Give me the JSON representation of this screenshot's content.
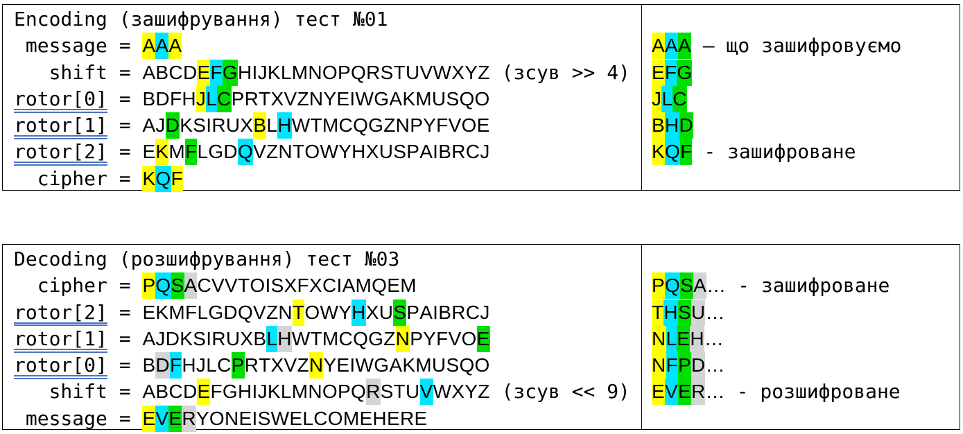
{
  "encoding": {
    "title": "Encoding (зашифрування) тест №01",
    "rows": [
      {
        "label": " message = ",
        "rotor": false,
        "seq": "AAA",
        "hl": "ycy",
        "tail": ""
      },
      {
        "label": "   shift = ",
        "rotor": false,
        "seq": "ABCDEFGHIJKLMNOPQRSTUVWXYZ",
        "hl": "....ycg...................",
        "tail": " (зсув >> 4)"
      },
      {
        "label": "rotor[0] = ",
        "rotor": true,
        "seq": "BDFHJLCPRTXVZNYEIWGAKMUSQO",
        "hl": "....ycg...................",
        "tail": ""
      },
      {
        "label": "rotor[1] = ",
        "rotor": true,
        "seq": "AJDKSIRUXBLHWTMCQGZNPYFVOE",
        "hl": "..g......y.c..............",
        "tail": ""
      },
      {
        "label": "rotor[2] = ",
        "rotor": true,
        "seq": "EKMFLGDQVZNTOWYHXUSPAIBRCJ",
        "hl": ".y.g...c..................",
        "tail": ""
      },
      {
        "label": "  cipher = ",
        "rotor": false,
        "seq": "KQF",
        "hl": "ycy",
        "tail": ""
      }
    ],
    "side": [
      {
        "seq": "",
        "hl": "",
        "tail": ""
      },
      {
        "seq": "AAA",
        "hl": "ycg",
        "tail": " – що зашифровуємо"
      },
      {
        "seq": "EFG",
        "hl": "ycg",
        "tail": ""
      },
      {
        "seq": "JLC",
        "hl": "ycg",
        "tail": ""
      },
      {
        "seq": "BHD",
        "hl": "ycg",
        "tail": ""
      },
      {
        "seq": "KQF",
        "hl": "ycg",
        "tail": " - зашифроване"
      }
    ]
  },
  "decoding": {
    "title": "Decoding (розшифрування) тест №03",
    "rows": [
      {
        "label": "  cipher = ",
        "rotor": false,
        "seq": "PQSACVVTOISXFXCIAMQEM",
        "hl": "ycgr.................",
        "tail": ""
      },
      {
        "label": "rotor[2] = ",
        "rotor": true,
        "seq": "EKMFLGDQVZNTOWYHXUSPAIBRCJ",
        "hl": "...........y...c..g.......",
        "tail": ""
      },
      {
        "label": "rotor[1] = ",
        "rotor": true,
        "seq": "AJDKSIRUXBLHWTMCQGZNPYFVOE",
        "hl": "..........cr.......y.....g",
        "tail": ""
      },
      {
        "label": "rotor[0] = ",
        "rotor": true,
        "seq": "BDFHJLCPRTXVZNYEIWGAKMUSQO",
        "hl": ".rc....g.....y............",
        "tail": ""
      },
      {
        "label": "   shift = ",
        "rotor": false,
        "seq": "ABCDEFGHIJKLMNOPQRSTUVWXYZ",
        "hl": "....y............r...c....",
        "tail": " (зсув << 9)"
      },
      {
        "label": " message = ",
        "rotor": false,
        "seq": "EVERYONEISWELCOMEHERE",
        "hl": "ycgr.................",
        "tail": ""
      }
    ],
    "side": [
      {
        "seq": "",
        "hl": "",
        "tail": ""
      },
      {
        "seq": "PQSA…",
        "hl": "ycgr.",
        "tail": " - зашифроване"
      },
      {
        "seq": "THSU…",
        "hl": "ycgr.",
        "tail": ""
      },
      {
        "seq": "NLEH…",
        "hl": "ycgr.",
        "tail": ""
      },
      {
        "seq": "NFPD…",
        "hl": "ycgr.",
        "tail": ""
      },
      {
        "seq": "EVER…",
        "hl": "ycgr.",
        "tail": " - розшифроване"
      }
    ]
  },
  "colors": {
    "y": "#ffff00",
    "c": "#00e5ff",
    "g": "#00e000",
    "r": "#d4d4d4"
  }
}
